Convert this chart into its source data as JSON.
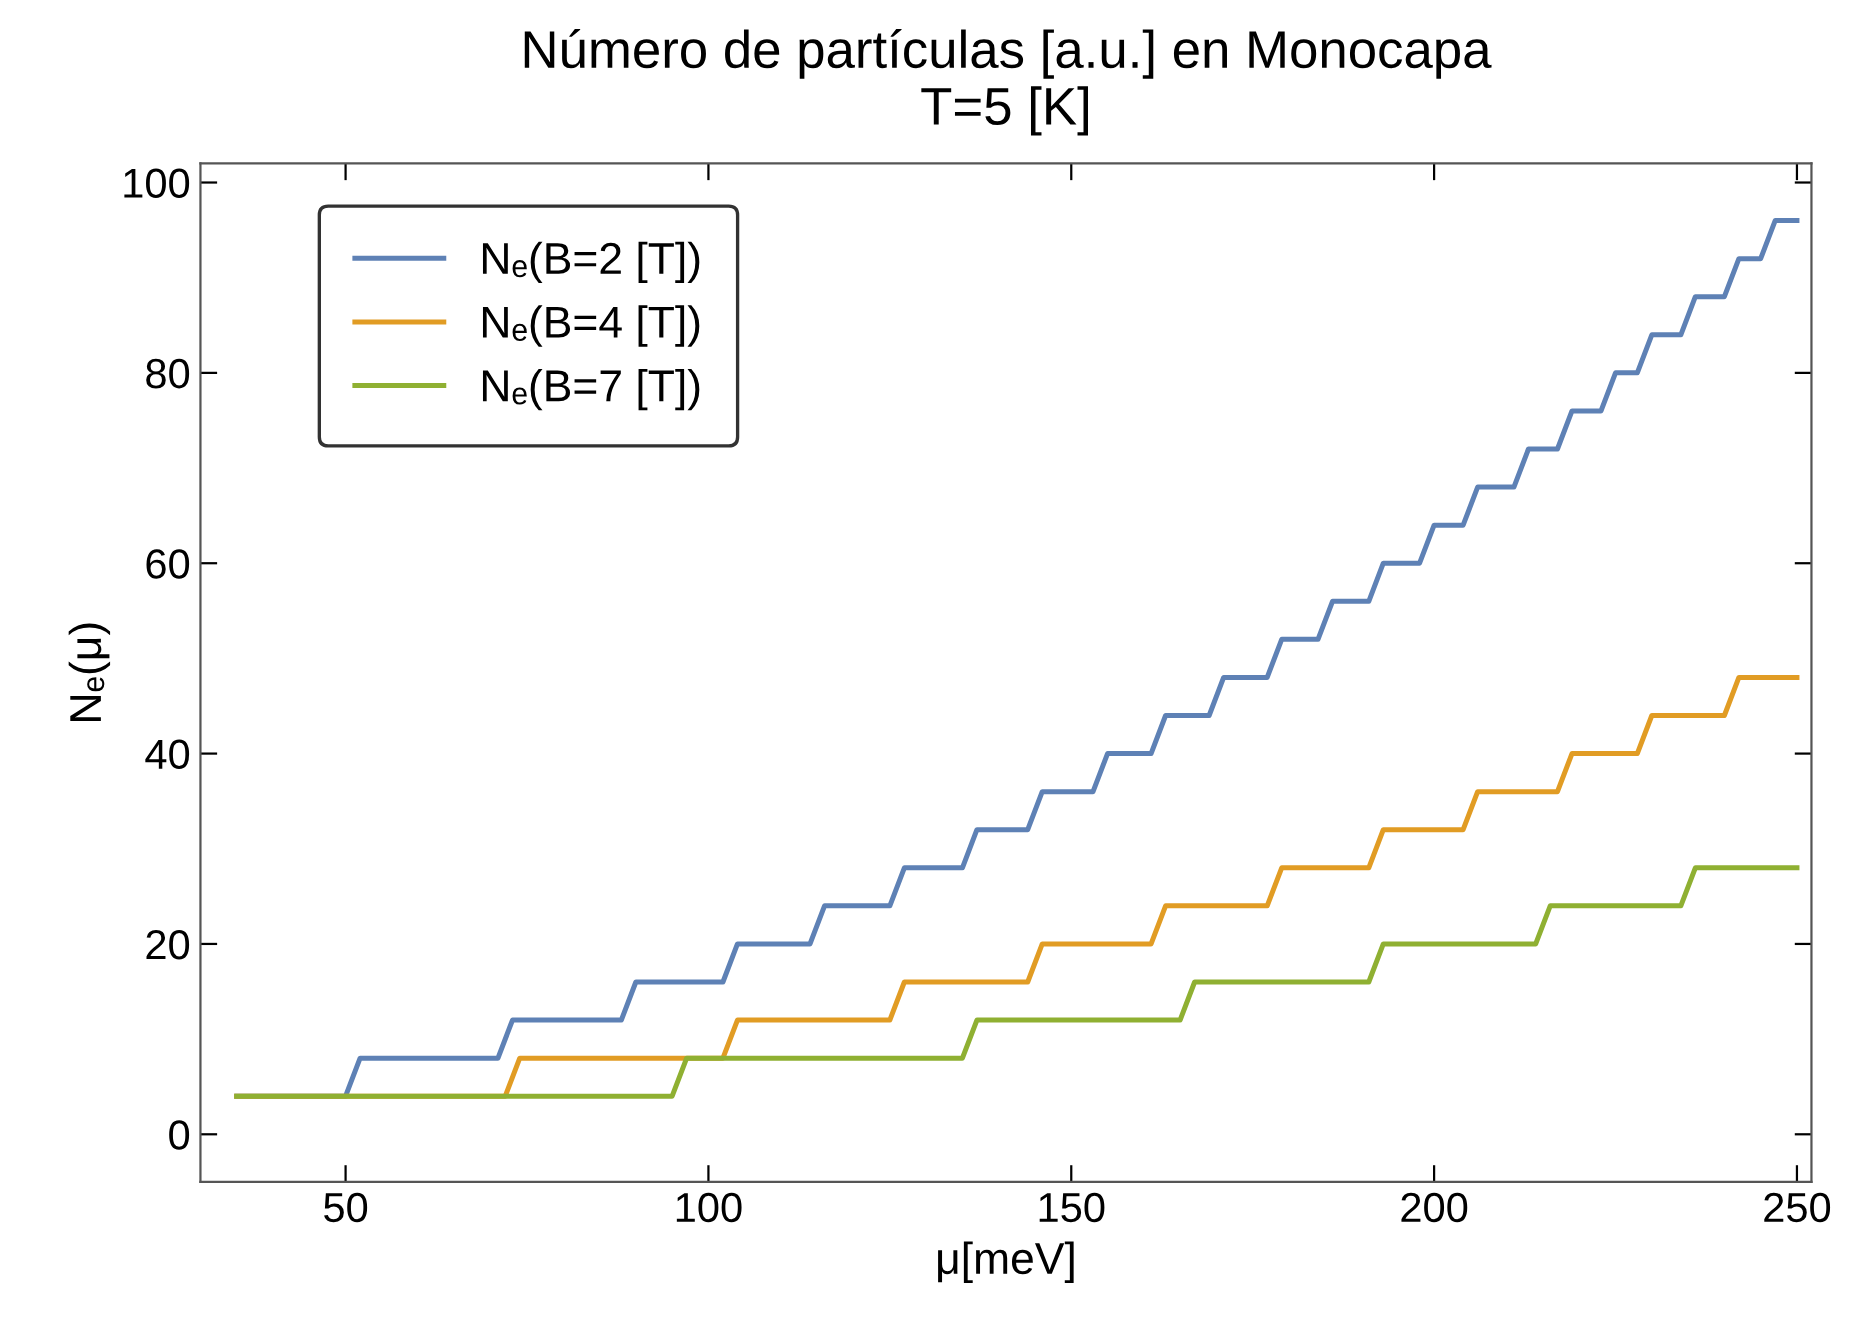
{
  "chart_data": {
    "type": "line",
    "title": "Número de partículas [a.u.] en Monocapa\nT=5 [K]",
    "xlabel": "μ[meV]",
    "ylabel": "Nₑ(μ)",
    "xlim": [
      30,
      252
    ],
    "ylim": [
      -5,
      102
    ],
    "xticks": [
      50,
      100,
      150,
      200,
      250
    ],
    "yticks": [
      0,
      20,
      40,
      60,
      80,
      100
    ],
    "grid": false,
    "legend": "top left",
    "marker": "none",
    "line_style": "solid",
    "series": [
      {
        "name": "Nₑ(B=2 [T])",
        "color": "#5e81b5",
        "x": [
          35,
          50,
          52,
          71,
          73,
          88,
          90,
          102,
          104,
          114,
          116,
          125,
          127,
          135,
          137,
          144,
          146,
          153,
          155,
          161,
          163,
          169,
          171,
          177,
          179,
          184,
          186,
          191,
          193,
          198,
          200,
          204,
          206,
          211,
          213,
          217,
          219,
          223,
          225,
          228,
          230,
          234,
          236,
          240,
          242,
          245,
          247,
          250
        ],
        "values": [
          4,
          4,
          8,
          8,
          12,
          12,
          16,
          16,
          20,
          20,
          24,
          24,
          28,
          28,
          32,
          32,
          36,
          36,
          40,
          40,
          44,
          44,
          48,
          48,
          52,
          52,
          56,
          56,
          60,
          60,
          64,
          64,
          68,
          68,
          72,
          72,
          76,
          76,
          80,
          80,
          84,
          84,
          88,
          88,
          92,
          92,
          96,
          96
        ]
      },
      {
        "name": "Nₑ(B=4 [T])",
        "color": "#e19c24",
        "x": [
          35,
          72,
          74,
          102,
          104,
          125,
          127,
          144,
          146,
          161,
          163,
          177,
          179,
          191,
          193,
          204,
          206,
          217,
          219,
          228,
          230,
          240,
          242,
          250
        ],
        "values": [
          4,
          4,
          8,
          8,
          12,
          12,
          16,
          16,
          20,
          20,
          24,
          24,
          28,
          28,
          32,
          32,
          36,
          36,
          40,
          40,
          44,
          44,
          48,
          48
        ]
      },
      {
        "name": "Nₑ(B=7 [T])",
        "color": "#8fb032",
        "x": [
          35,
          95,
          97,
          135,
          137,
          165,
          167,
          191,
          193,
          214,
          216,
          234,
          236,
          250
        ],
        "values": [
          4,
          4,
          8,
          8,
          12,
          12,
          16,
          16,
          20,
          20,
          24,
          24,
          28,
          28
        ]
      }
    ]
  }
}
